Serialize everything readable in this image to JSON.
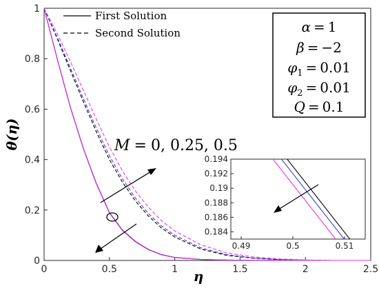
{
  "chart_data": {
    "type": "line",
    "xlabel": "η",
    "ylabel": "θ(η)",
    "xlim": [
      0,
      2.5
    ],
    "ylim": [
      0,
      1
    ],
    "xticks": [
      "0",
      "0.5",
      "1",
      "1.5",
      "2",
      "2.5"
    ],
    "yticks": [
      "0",
      "0.2",
      "0.4",
      "0.6",
      "0.8",
      "1"
    ],
    "legend": {
      "position": "top-left",
      "entries": [
        {
          "label": "First Solution",
          "style": "solid"
        },
        {
          "label": "Second Solution",
          "style": "dashed"
        }
      ]
    },
    "parameter_box": {
      "position": "top-right",
      "lines": [
        {
          "sym": "α",
          "value": "1"
        },
        {
          "sym": "β",
          "value": "−2"
        },
        {
          "sym": "φ",
          "sub": "1",
          "value": "0.01"
        },
        {
          "sym": "φ",
          "sub": "2",
          "value": "0.01"
        },
        {
          "sym": "Q",
          "value": "0.1"
        }
      ]
    },
    "annotation": {
      "sym": "M",
      "value": "0, 0.25, 0.5"
    },
    "series_colors": [
      "#000000",
      "#3b3bd6",
      "#e433e4"
    ],
    "first_solution": [
      {
        "x": [
          0,
          0.1,
          0.2,
          0.3,
          0.4,
          0.5,
          0.6,
          0.7,
          0.8,
          0.9,
          1.0,
          1.2,
          1.4,
          1.6,
          2.0,
          2.5
        ],
        "y": [
          1,
          0.8,
          0.61,
          0.445,
          0.305,
          0.19,
          0.12,
          0.075,
          0.043,
          0.023,
          0.012,
          0.004,
          0.0015,
          0.0005,
          0,
          0
        ]
      },
      {
        "x": [
          0,
          0.1,
          0.2,
          0.3,
          0.4,
          0.5,
          0.6,
          0.7,
          0.8,
          0.9,
          1.0,
          1.2,
          1.4,
          1.6,
          2.0,
          2.5
        ],
        "y": [
          1,
          0.8,
          0.609,
          0.444,
          0.304,
          0.189,
          0.119,
          0.074,
          0.042,
          0.022,
          0.012,
          0.004,
          0.0015,
          0.0005,
          0,
          0
        ]
      },
      {
        "x": [
          0,
          0.1,
          0.2,
          0.3,
          0.4,
          0.5,
          0.6,
          0.7,
          0.8,
          0.9,
          1.0,
          1.2,
          1.4,
          1.6,
          2.0,
          2.5
        ],
        "y": [
          1,
          0.799,
          0.608,
          0.443,
          0.303,
          0.188,
          0.118,
          0.073,
          0.042,
          0.022,
          0.011,
          0.004,
          0.0015,
          0.0005,
          0,
          0
        ]
      }
    ],
    "second_solution": [
      {
        "x": [
          0,
          0.1,
          0.2,
          0.3,
          0.4,
          0.5,
          0.6,
          0.7,
          0.8,
          0.9,
          1.0,
          1.2,
          1.4,
          1.6,
          1.8,
          2.0,
          2.2,
          2.5
        ],
        "y": [
          1,
          0.88,
          0.755,
          0.63,
          0.51,
          0.4,
          0.31,
          0.235,
          0.175,
          0.128,
          0.093,
          0.045,
          0.02,
          0.009,
          0.003,
          0.001,
          0,
          0
        ]
      },
      {
        "x": [
          0,
          0.1,
          0.2,
          0.3,
          0.4,
          0.5,
          0.6,
          0.7,
          0.8,
          0.9,
          1.0,
          1.2,
          1.4,
          1.6,
          1.8,
          2.0,
          2.2,
          2.5
        ],
        "y": [
          1,
          0.885,
          0.765,
          0.643,
          0.525,
          0.415,
          0.323,
          0.247,
          0.185,
          0.136,
          0.1,
          0.05,
          0.023,
          0.01,
          0.004,
          0.001,
          0,
          0
        ]
      },
      {
        "x": [
          0,
          0.1,
          0.2,
          0.3,
          0.4,
          0.5,
          0.6,
          0.7,
          0.8,
          0.9,
          1.0,
          1.2,
          1.4,
          1.6,
          1.8,
          2.0,
          2.2,
          2.5
        ],
        "y": [
          1,
          0.9,
          0.79,
          0.675,
          0.56,
          0.45,
          0.355,
          0.275,
          0.21,
          0.157,
          0.117,
          0.062,
          0.03,
          0.014,
          0.006,
          0.002,
          0,
          0
        ]
      }
    ],
    "inset": {
      "position": "bottom-right",
      "xlim": [
        0.488,
        0.514
      ],
      "ylim": [
        0.183,
        0.194
      ],
      "xticks": [
        "0.49",
        "0.5",
        "0.51"
      ],
      "yticks": [
        "0.184",
        "0.186",
        "0.188",
        "0.19",
        "0.192",
        "0.194"
      ],
      "series": [
        {
          "x": [
            0.488,
            0.514
          ],
          "y": [
            0.2039,
            0.1803
          ]
        },
        {
          "x": [
            0.488,
            0.514
          ],
          "y": [
            0.2029,
            0.1793
          ]
        },
        {
          "x": [
            0.488,
            0.514
          ],
          "y": [
            0.2014,
            0.1778
          ]
        }
      ]
    }
  }
}
